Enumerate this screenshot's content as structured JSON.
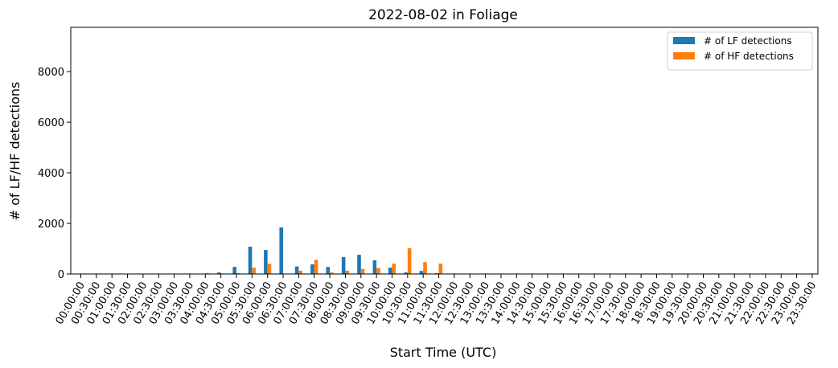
{
  "chart_data": {
    "type": "bar",
    "title": "2022-08-02 in Foliage",
    "xlabel": "Start Time (UTC)",
    "ylabel": "# of LF/HF detections",
    "ylim": [
      0,
      9750
    ],
    "yticks": [
      0,
      2000,
      4000,
      6000,
      8000
    ],
    "legend_position": "top-right",
    "grid": false,
    "categories": [
      "00:00:00",
      "00:30:00",
      "01:00:00",
      "01:30:00",
      "02:00:00",
      "02:30:00",
      "03:00:00",
      "03:30:00",
      "04:00:00",
      "04:30:00",
      "05:00:00",
      "05:30:00",
      "06:00:00",
      "06:30:00",
      "07:00:00",
      "07:30:00",
      "08:00:00",
      "08:30:00",
      "09:00:00",
      "09:30:00",
      "10:00:00",
      "10:30:00",
      "11:00:00",
      "11:30:00",
      "12:00:00",
      "12:30:00",
      "13:00:00",
      "13:30:00",
      "14:00:00",
      "14:30:00",
      "15:00:00",
      "15:30:00",
      "16:00:00",
      "16:30:00",
      "17:00:00",
      "17:30:00",
      "18:00:00",
      "18:30:00",
      "19:00:00",
      "19:30:00",
      "20:00:00",
      "20:30:00",
      "21:00:00",
      "21:30:00",
      "22:00:00",
      "22:30:00",
      "23:00:00",
      "23:30:00"
    ],
    "series": [
      {
        "name": "# of LF detections",
        "color": "#1f77b4",
        "values": [
          0,
          0,
          0,
          0,
          0,
          0,
          0,
          0,
          0,
          60,
          280,
          1080,
          950,
          1840,
          300,
          380,
          280,
          670,
          760,
          540,
          250,
          60,
          120,
          30,
          0,
          0,
          0,
          0,
          0,
          0,
          0,
          0,
          0,
          0,
          0,
          0,
          0,
          0,
          0,
          0,
          0,
          0,
          0,
          0,
          0,
          0,
          0,
          0
        ]
      },
      {
        "name": "# of HF detections",
        "color": "#ff7f0e",
        "values": [
          0,
          0,
          0,
          0,
          0,
          0,
          0,
          0,
          30,
          20,
          30,
          250,
          400,
          0,
          130,
          560,
          60,
          130,
          200,
          240,
          410,
          1020,
          470,
          410,
          20,
          0,
          0,
          0,
          0,
          0,
          0,
          0,
          0,
          0,
          0,
          0,
          0,
          0,
          0,
          0,
          0,
          0,
          0,
          0,
          0,
          0,
          0,
          0
        ]
      }
    ]
  }
}
